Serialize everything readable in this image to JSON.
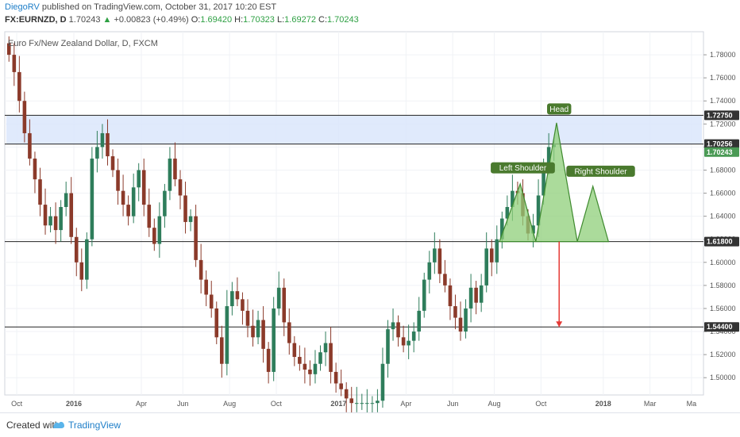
{
  "header": {
    "author": "DiegoRV",
    "published": "published on TradingView.com, October 31, 2017 10:20 EST",
    "symbol": "FX:EURNZD, D",
    "last": "1.70243",
    "change_arrow": "▲",
    "change": "+0.00823 (+0.49%)",
    "o_label": "O:",
    "o_val": "1.69420",
    "h_label": "H:",
    "h_val": "1.70323",
    "l_label": "L:",
    "l_val": "1.69272",
    "c_label": "C:",
    "c_val": "1.70243"
  },
  "footer": {
    "created_with": "Created with",
    "brand": "TradingView"
  },
  "colors": {
    "bull": "#2e7d5b",
    "bear": "#8b3a2a",
    "zone": "#dbe6fb",
    "pattern": "#8fcf7a",
    "arrow": "#e53935",
    "label_bg": "#4a7a2e"
  },
  "chart_data": {
    "type": "candlestick",
    "title": "Euro Fx/New Zealand Dollar, D, FXCM",
    "ylim": [
      1.485,
      1.8
    ],
    "y_ticks": [
      "1.78000",
      "1.76000",
      "1.74000",
      "1.72000",
      "1.70000",
      "1.68000",
      "1.66000",
      "1.64000",
      "1.62000",
      "1.60000",
      "1.58000",
      "1.56000",
      "1.54000",
      "1.52000",
      "1.50000"
    ],
    "x_ticks": [
      {
        "label": "Oct",
        "bold": false,
        "i": 2
      },
      {
        "label": "2016",
        "bold": true,
        "i": 13
      },
      {
        "label": "Apr",
        "bold": false,
        "i": 26
      },
      {
        "label": "Jun",
        "bold": false,
        "i": 34
      },
      {
        "label": "Aug",
        "bold": false,
        "i": 43
      },
      {
        "label": "Oct",
        "bold": false,
        "i": 52
      },
      {
        "label": "2017",
        "bold": true,
        "i": 64
      },
      {
        "label": "Apr",
        "bold": false,
        "i": 77
      },
      {
        "label": "Jun",
        "bold": false,
        "i": 86
      },
      {
        "label": "Aug",
        "bold": false,
        "i": 94
      },
      {
        "label": "Oct",
        "bold": false,
        "i": 103
      },
      {
        "label": "2018",
        "bold": true,
        "i": 115
      },
      {
        "label": "Mar",
        "bold": false,
        "i": 124
      },
      {
        "label": "Ma",
        "bold": false,
        "i": 132
      }
    ],
    "x_count": 134,
    "series": [
      {
        "name": "EURNZD",
        "closes": [
          1.78,
          1.765,
          1.74,
          1.712,
          1.69,
          1.672,
          1.65,
          1.632,
          1.64,
          1.628,
          1.648,
          1.66,
          1.622,
          1.6,
          1.585,
          1.62,
          1.69,
          1.7,
          1.712,
          1.692,
          1.68,
          1.662,
          1.65,
          1.64,
          1.665,
          1.68,
          1.65,
          1.63,
          1.616,
          1.64,
          1.662,
          1.69,
          1.672,
          1.658,
          1.635,
          1.64,
          1.602,
          1.585,
          1.572,
          1.56,
          1.535,
          1.512,
          1.562,
          1.575,
          1.568,
          1.558,
          1.545,
          1.535,
          1.55,
          1.525,
          1.505,
          1.56,
          1.578,
          1.548,
          1.53,
          1.518,
          1.512,
          1.507,
          1.503,
          1.512,
          1.522,
          1.53,
          1.505,
          1.495,
          1.49,
          1.482,
          1.478,
          1.478,
          1.478,
          1.478,
          1.478,
          1.48,
          1.512,
          1.542,
          1.548,
          1.535,
          1.528,
          1.532,
          1.54,
          1.558,
          1.585,
          1.6,
          1.612,
          1.59,
          1.58,
          1.562,
          1.552,
          1.54,
          1.56,
          1.578,
          1.565,
          1.58,
          1.612,
          1.6,
          1.62,
          1.638,
          1.648,
          1.662,
          1.66,
          1.64,
          1.625,
          1.632,
          1.658,
          1.682,
          1.7,
          1.702
        ]
      }
    ],
    "levels": [
      {
        "value": "1.72750",
        "y": 1.7275,
        "color": "#333333"
      },
      {
        "value": "1.70256",
        "y": 1.70256,
        "color": "#333333"
      },
      {
        "value": "1.70243",
        "y": 1.6956,
        "color": "#4a9a55"
      },
      {
        "value": "1.61800",
        "y": 1.618,
        "color": "#333333"
      },
      {
        "value": "1.54400",
        "y": 1.544,
        "color": "#333333"
      }
    ],
    "zone": {
      "y_top": 1.7275,
      "y_bottom": 1.70256,
      "i_start": 0,
      "i_end": 134
    },
    "pattern_labels": {
      "head": "Head",
      "left_shoulder": "Left Shoulder",
      "right_shoulder": "Right Shoulder"
    },
    "pattern": {
      "neckline": 1.618,
      "points": [
        [
          95,
          1.618
        ],
        [
          99,
          1.668
        ],
        [
          102,
          1.618
        ],
        [
          106,
          1.721
        ],
        [
          110,
          1.618
        ],
        [
          113,
          1.666
        ],
        [
          116,
          1.618
        ]
      ]
    },
    "target_arrow": {
      "i": 106,
      "from": 1.618,
      "to": 1.544
    }
  }
}
